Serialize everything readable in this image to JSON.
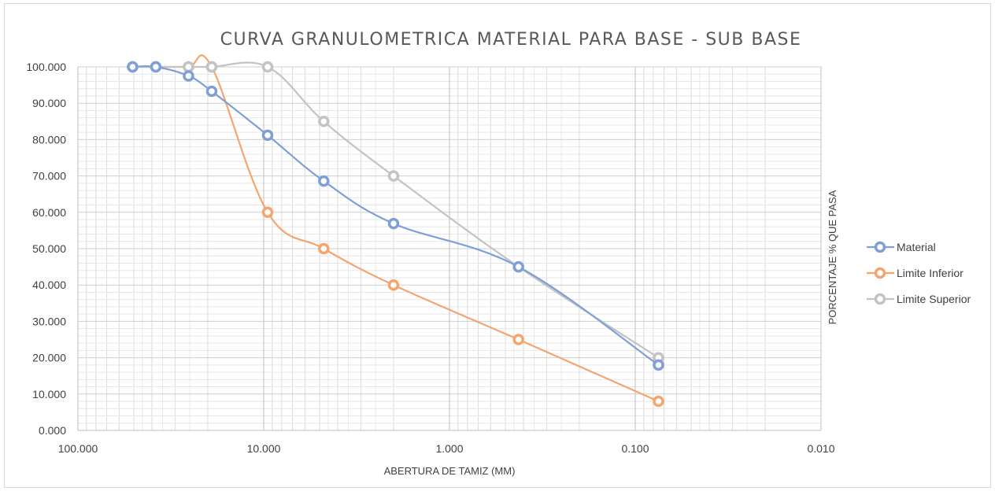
{
  "chart_data": {
    "type": "scatter",
    "title": "CURVA GRANULOMETRICA MATERIAL PARA BASE - SUB BASE",
    "xlabel": "ABERTURA DE TAMIZ (MM)",
    "ylabel": "PORCENTAJE % QUE PASA",
    "x_scale": "log",
    "x_reversed": true,
    "xlim": [
      100,
      0.01
    ],
    "ylim": [
      0,
      100
    ],
    "x_ticks": [
      100,
      10,
      1,
      0.1,
      0.01
    ],
    "x_tick_labels": [
      "100.000",
      "10.000",
      "1.000",
      "0.100",
      "0.010"
    ],
    "y_ticks": [
      0,
      10,
      20,
      30,
      40,
      50,
      60,
      70,
      80,
      90,
      100
    ],
    "y_tick_labels": [
      "0.000",
      "10.000",
      "20.000",
      "30.000",
      "40.000",
      "50.000",
      "60.000",
      "70.000",
      "80.000",
      "90.000",
      "100.000"
    ],
    "grid": true,
    "legend_position": "right",
    "series": [
      {
        "name": "Material",
        "color": "#7f9fd6",
        "x": [
          50.8,
          38.1,
          25.4,
          19.05,
          9.525,
          4.75,
          2.0,
          0.425,
          0.075
        ],
        "y": [
          100,
          100,
          97.5,
          93.3,
          81.2,
          68.6,
          56.9,
          45.0,
          18.0
        ]
      },
      {
        "name": "Limite Inferior",
        "color": "#f4a56e",
        "x": [
          50.8,
          38.1,
          25.4,
          19.05,
          9.525,
          4.75,
          2.0,
          0.425,
          0.075
        ],
        "y": [
          100,
          100,
          100,
          100,
          60,
          50,
          40,
          25,
          8
        ]
      },
      {
        "name": "Limite Superior",
        "color": "#c3c3c3",
        "x": [
          50.8,
          38.1,
          25.4,
          19.05,
          9.525,
          4.75,
          2.0,
          0.425,
          0.075
        ],
        "y": [
          100,
          100,
          100,
          100,
          100,
          85,
          70,
          45,
          20
        ]
      }
    ]
  }
}
